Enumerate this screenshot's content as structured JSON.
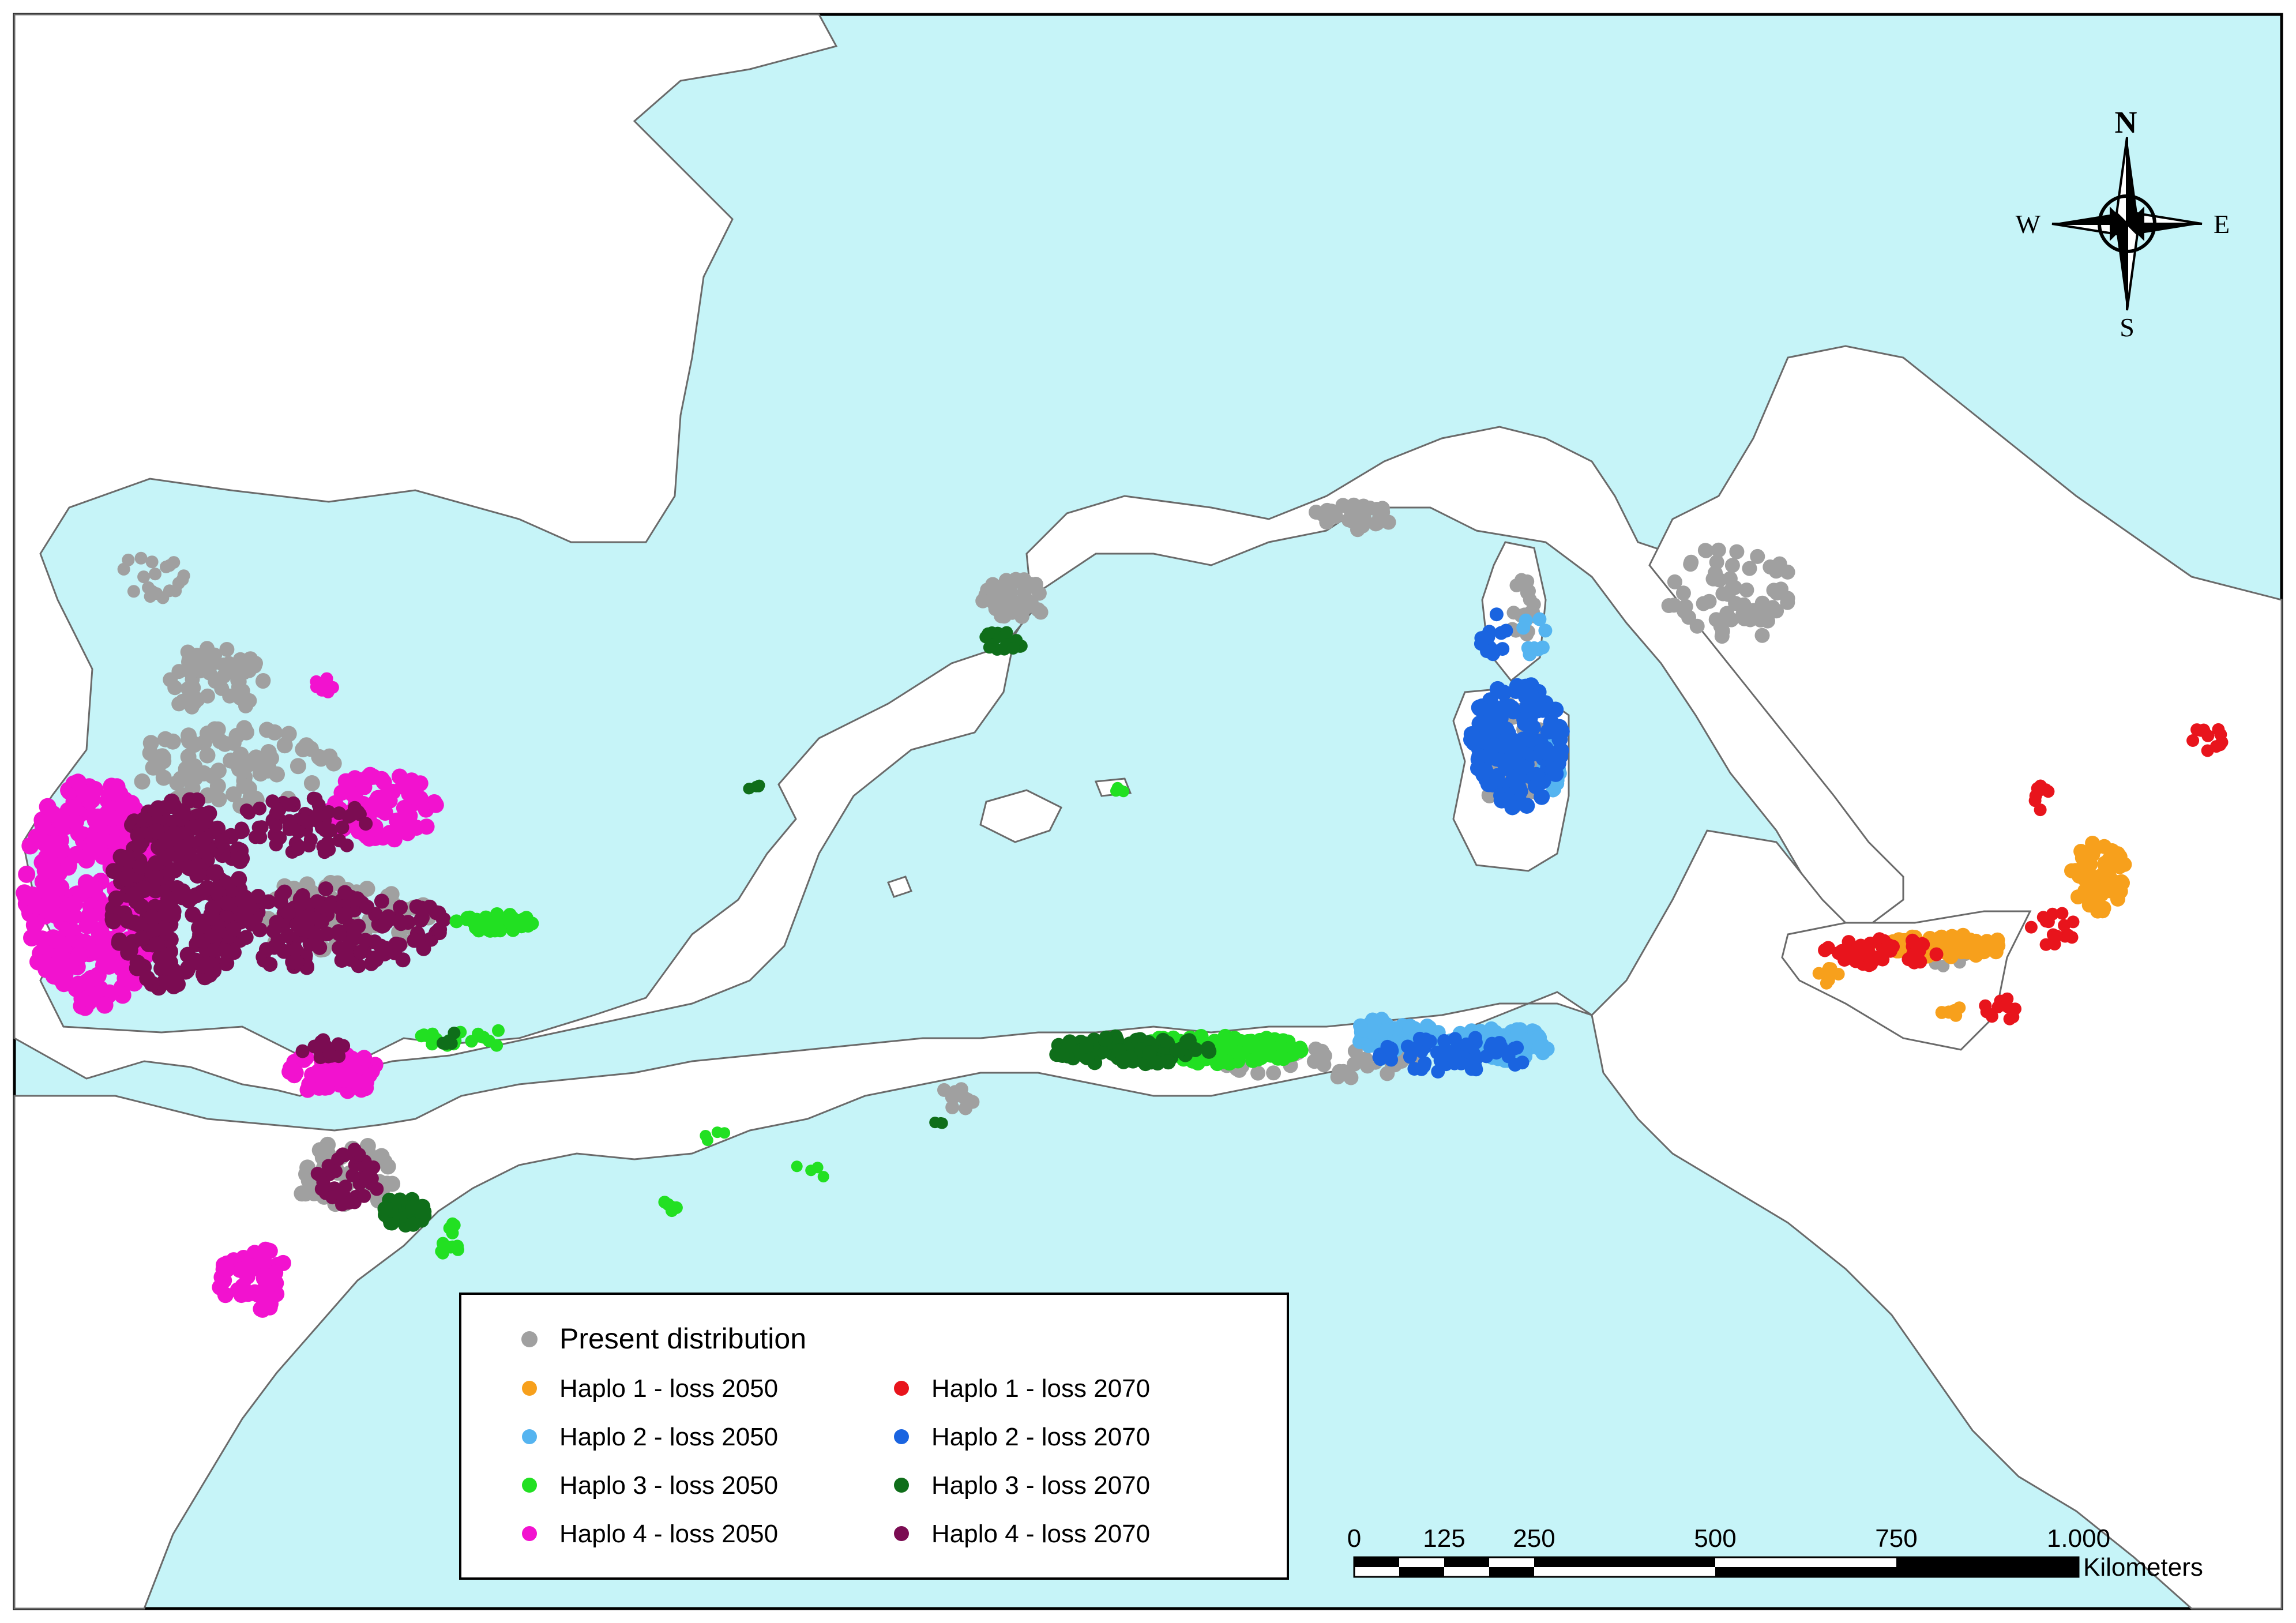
{
  "legend": {
    "present": {
      "label": "Present distribution",
      "color": "#a0a0a0"
    },
    "items": [
      {
        "label": "Haplo 1 - loss 2050",
        "color": "#f7a01c"
      },
      {
        "label": "Haplo 1 - loss 2070",
        "color": "#e8141c"
      },
      {
        "label": "Haplo 2 - loss 2050",
        "color": "#55b4f0"
      },
      {
        "label": "Haplo 2 - loss 2070",
        "color": "#1a64e0"
      },
      {
        "label": "Haplo 3 - loss 2050",
        "color": "#22e022"
      },
      {
        "label": "Haplo 3 - loss 2070",
        "color": "#0f6e1a"
      },
      {
        "label": "Haplo 4 - loss 2050",
        "color": "#f212cf"
      },
      {
        "label": "Haplo 4 - loss 2070",
        "color": "#7b0c52"
      }
    ]
  },
  "compass": {
    "north": "N",
    "south": "S",
    "east": "E",
    "west": "W"
  },
  "scale_bar": {
    "ticks": [
      "0",
      "125",
      "250",
      "500",
      "750",
      "1.000"
    ],
    "unit": "Kilometers"
  },
  "colors": {
    "sea": "#c6f4f8",
    "land": "#ffffff",
    "coast": "#6a6a6a"
  }
}
